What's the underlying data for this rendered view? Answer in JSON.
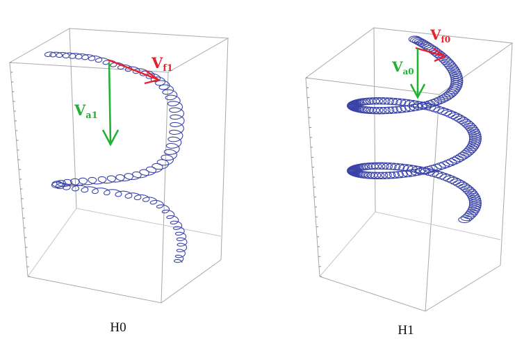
{
  "panels": [
    {
      "caption": "H0",
      "vf": {
        "main": "V",
        "sub": "f1"
      },
      "va": {
        "main": "V",
        "sub": "a1"
      }
    },
    {
      "caption": "H1",
      "vf": {
        "main": "V",
        "sub": "f0"
      },
      "va": {
        "main": "V",
        "sub": "a0"
      }
    }
  ],
  "colors": {
    "coil": "#3a44a8",
    "vf_arrow": "#e8202a",
    "va_arrow": "#22b233",
    "box": "#a8a8a8"
  }
}
